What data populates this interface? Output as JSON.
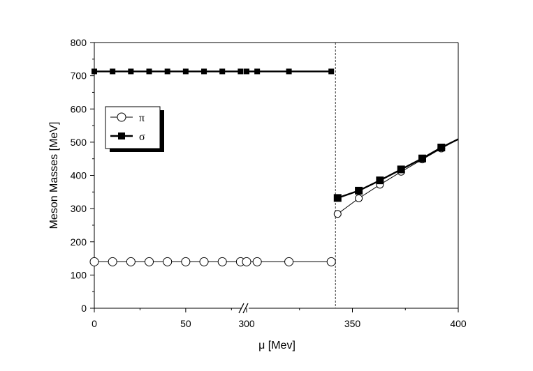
{
  "chart_data": {
    "type": "line",
    "xlabel": "μ [Mev]",
    "ylabel": "Meson Masses   [MeV]",
    "ylim": [
      0,
      800
    ],
    "y_ticks": [
      0,
      100,
      200,
      300,
      400,
      500,
      600,
      700,
      800
    ],
    "x_segments": [
      {
        "xlim": [
          0,
          81
        ],
        "ticks": [
          0,
          50
        ]
      },
      {
        "xlim": [
          300,
          400
        ],
        "ticks": [
          300,
          350,
          400
        ]
      }
    ],
    "axis_break_x": 300,
    "critical_mu": 342,
    "legend": {
      "placement": "upper-left",
      "entries": [
        "π",
        "σ"
      ]
    },
    "series": [
      {
        "name": "π",
        "marker": "open-circle",
        "x": [
          0,
          10,
          20,
          30,
          40,
          50,
          60,
          70,
          80,
          300,
          305,
          320,
          340
        ],
        "y": [
          140,
          140,
          140,
          140,
          140,
          140,
          140,
          140,
          140,
          140,
          140,
          140,
          140
        ],
        "x_after": [
          343,
          353,
          363,
          373,
          383,
          392
        ],
        "y_after": [
          284,
          331,
          372,
          411,
          448,
          481
        ],
        "curve_end": [
          400,
          509
        ]
      },
      {
        "name": "σ",
        "marker": "filled-square",
        "x": [
          0,
          10,
          20,
          30,
          40,
          50,
          60,
          70,
          80,
          300,
          305,
          320,
          340
        ],
        "y": [
          713,
          713,
          713,
          713,
          713,
          713,
          713,
          713,
          713,
          713,
          713,
          713,
          713
        ],
        "x_after": [
          343,
          353,
          363,
          373,
          383,
          392
        ],
        "y_after": [
          332,
          354,
          385,
          418,
          451,
          484
        ],
        "curve_end": [
          400,
          509
        ]
      }
    ]
  }
}
